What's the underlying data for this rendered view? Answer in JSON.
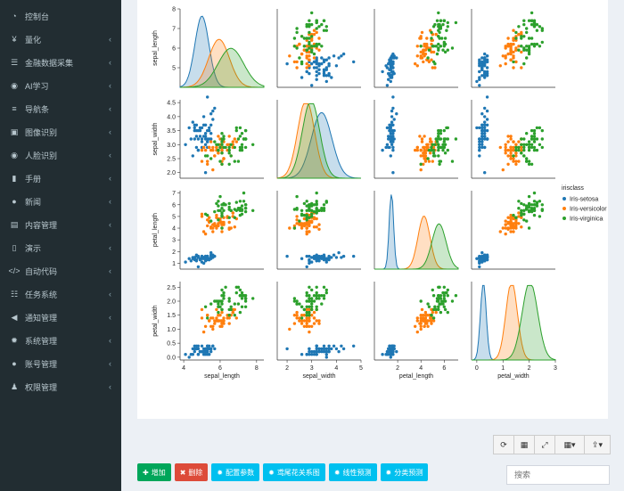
{
  "sidebar": {
    "items": [
      {
        "label": "控制台",
        "icon": "dashboard-icon",
        "glyph": "◔",
        "chevron": false
      },
      {
        "label": "量化",
        "icon": "yen-icon",
        "glyph": "¥",
        "chevron": true
      },
      {
        "label": "金融数据采集",
        "icon": "database-icon",
        "glyph": "☰",
        "chevron": true
      },
      {
        "label": "AI学习",
        "icon": "robot-icon",
        "glyph": "◉",
        "chevron": true
      },
      {
        "label": "导航条",
        "icon": "navbar-icon",
        "glyph": "≡",
        "chevron": true
      },
      {
        "label": "图像识别",
        "icon": "image-icon",
        "glyph": "▣",
        "chevron": true
      },
      {
        "label": "人脸识别",
        "icon": "eye-icon",
        "glyph": "◉",
        "chevron": true
      },
      {
        "label": "手册",
        "icon": "book-icon",
        "glyph": "▮",
        "chevron": true
      },
      {
        "label": "新闻",
        "icon": "globe-icon",
        "glyph": "●",
        "chevron": true
      },
      {
        "label": "内容管理",
        "icon": "inbox-icon",
        "glyph": "▤",
        "chevron": true
      },
      {
        "label": "演示",
        "icon": "file-icon",
        "glyph": "▯",
        "chevron": true
      },
      {
        "label": "自动代码",
        "icon": "code-icon",
        "glyph": "</>",
        "chevron": true
      },
      {
        "label": "任务系统",
        "icon": "tasks-icon",
        "glyph": "☷",
        "chevron": true
      },
      {
        "label": "通知管理",
        "icon": "bullhorn-icon",
        "glyph": "◀",
        "chevron": true
      },
      {
        "label": "系统管理",
        "icon": "gear-icon",
        "glyph": "✹",
        "chevron": true
      },
      {
        "label": "账号管理",
        "icon": "user-icon",
        "glyph": "●",
        "chevron": true
      },
      {
        "label": "权限管理",
        "icon": "users-icon",
        "glyph": "♟",
        "chevron": true
      }
    ]
  },
  "toolbar": {
    "refresh": "⟳",
    "export_icon": "▦",
    "fullscreen": "⤢",
    "columns": "▦▾",
    "upload": "⇪▾"
  },
  "actions": [
    {
      "label": "增加",
      "glyph": "✚",
      "color": "#00a65a"
    },
    {
      "label": "删除",
      "glyph": "✖",
      "color": "#dd4b39"
    },
    {
      "label": "配置参数",
      "glyph": "✹",
      "color": "#00c0ef"
    },
    {
      "label": "鸢尾花关系图",
      "glyph": "✹",
      "color": "#00c0ef"
    },
    {
      "label": "线性预测",
      "glyph": "✹",
      "color": "#00c0ef"
    },
    {
      "label": "分类预测",
      "glyph": "✹",
      "color": "#00c0ef"
    }
  ],
  "search": {
    "placeholder": "搜索"
  },
  "chart_data": {
    "type": "scatter",
    "variables": [
      "sepal_length",
      "sepal_width",
      "petal_length",
      "petal_width"
    ],
    "axis_ticks": {
      "sepal_length": [
        4,
        6,
        8
      ],
      "sepal_width": [
        2,
        3,
        4,
        5
      ],
      "petal_length": [
        2,
        4,
        6
      ],
      "petal_width": [
        0,
        1,
        2,
        3
      ]
    },
    "y_tick_labels": {
      "sepal_length": [
        "5",
        "6",
        "7",
        "8"
      ],
      "sepal_width": [
        "2.0",
        "2.5",
        "3.0",
        "3.5",
        "4.0",
        "4.5"
      ],
      "petal_length": [
        "1",
        "2",
        "3",
        "4",
        "5",
        "6",
        "7"
      ],
      "petal_width": [
        "0.0",
        "0.5",
        "1.0",
        "1.5",
        "2.0",
        "2.5"
      ]
    },
    "legend": {
      "title": "irisclass",
      "placement": "right",
      "entries": [
        "Iris-setosa",
        "Iris-versicolor",
        "Iris-virginica"
      ]
    },
    "series": [
      {
        "name": "Iris-setosa",
        "color": "#1f77b4",
        "mean": [
          5.0,
          3.4,
          1.46,
          0.25
        ],
        "sd": [
          0.35,
          0.38,
          0.17,
          0.1
        ]
      },
      {
        "name": "Iris-versicolor",
        "color": "#ff7f0e",
        "mean": [
          5.94,
          2.77,
          4.26,
          1.33
        ],
        "sd": [
          0.52,
          0.31,
          0.47,
          0.2
        ]
      },
      {
        "name": "Iris-virginica",
        "color": "#2ca02c",
        "mean": [
          6.59,
          2.97,
          5.55,
          2.03
        ],
        "sd": [
          0.64,
          0.32,
          0.55,
          0.27
        ]
      }
    ]
  }
}
